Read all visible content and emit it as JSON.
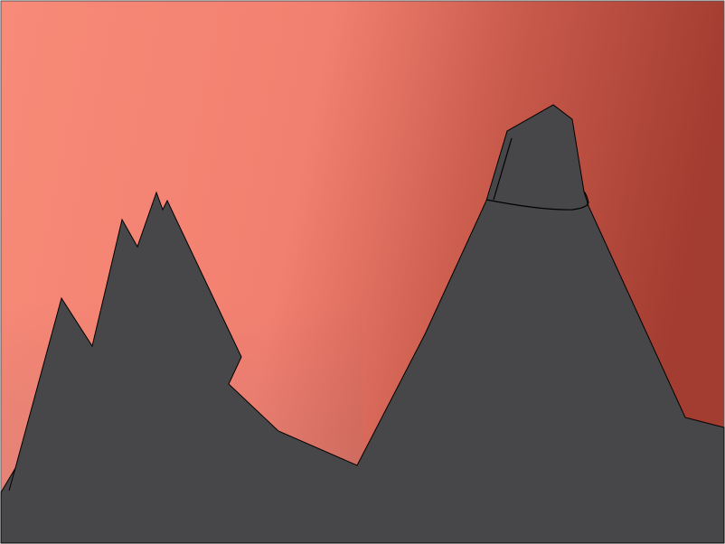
{
  "scene": {
    "colors": {
      "sky_light": "#f78a78",
      "sky_mid": "#f28070",
      "sky_dark": "#a33c31",
      "sky_left_muted": "#d38a82",
      "mountain_fill": "#474749",
      "outline": "#000000"
    },
    "elements": [
      "gradient-sky",
      "left-jagged-mountain",
      "right-peak-mountain",
      "summit-block"
    ]
  }
}
